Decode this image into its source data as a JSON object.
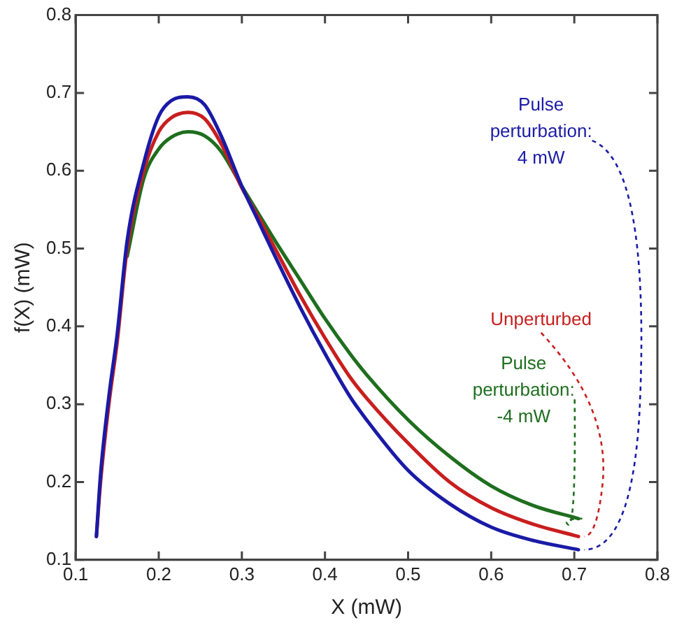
{
  "chart_data": {
    "type": "line",
    "xlabel": "X (mW)",
    "ylabel": "f(X) (mW)",
    "xlim": [
      0.1,
      0.8
    ],
    "xticks": [
      0.1,
      0.2,
      0.3,
      0.4,
      0.5,
      0.6,
      0.7,
      0.8
    ],
    "ylim": [
      0.1,
      0.8
    ],
    "yticks": [
      0.1,
      0.2,
      0.3,
      0.4,
      0.5,
      0.6,
      0.7,
      0.8
    ],
    "grid": false,
    "legend": false,
    "marker": "none",
    "line_style": "solid",
    "x": [
      0.125,
      0.13,
      0.14,
      0.15,
      0.162,
      0.182,
      0.2,
      0.215,
      0.235,
      0.255,
      0.275,
      0.3,
      0.32,
      0.34,
      0.37,
      0.4,
      0.43,
      0.45,
      0.5,
      0.55,
      0.6,
      0.65,
      0.705
    ],
    "series": [
      {
        "name": "Pulse perturbation: 4 mW",
        "color": "#1a1aa6",
        "values": [
          0.13,
          0.21,
          0.31,
          0.39,
          0.51,
          0.61,
          0.67,
          0.69,
          0.695,
          0.685,
          0.645,
          0.58,
          0.535,
          0.49,
          0.425,
          0.365,
          0.31,
          0.28,
          0.215,
          0.172,
          0.142,
          0.125,
          0.113
        ]
      },
      {
        "name": "Unperturbed",
        "color": "#c81e1e",
        "values": [
          0.13,
          0.2,
          0.3,
          0.38,
          0.5,
          0.6,
          0.65,
          0.668,
          0.675,
          0.667,
          0.635,
          0.578,
          0.54,
          0.5,
          0.44,
          0.385,
          0.335,
          0.308,
          0.25,
          0.2,
          0.167,
          0.146,
          0.13
        ]
      },
      {
        "name": "Pulse perturbation: -4 mW",
        "color": "#1e6e1e",
        "values": [
          null,
          null,
          null,
          null,
          0.49,
          0.59,
          0.628,
          0.643,
          0.65,
          0.645,
          0.625,
          0.58,
          0.545,
          0.51,
          0.46,
          0.41,
          0.365,
          0.338,
          0.28,
          0.233,
          0.195,
          0.17,
          0.153
        ]
      }
    ]
  }
}
